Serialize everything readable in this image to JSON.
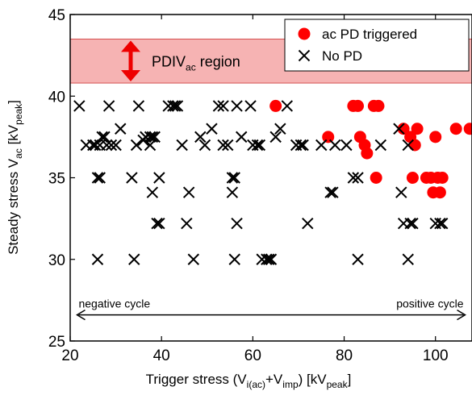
{
  "chart_data": {
    "type": "scatter",
    "xlabel": {
      "main": "Trigger stress (V",
      "sub1": "i(ac)",
      "mid": "+V",
      "sub2": "imp",
      "unitpre": ") [kV",
      "unitsub": "peak",
      "unitpost": "]"
    },
    "ylabel": {
      "main": "Steady stress V",
      "sub1": "ac",
      "unitpre": " [kV",
      "unitsub": "peak",
      "unitpost": "]"
    },
    "xlim": [
      20,
      108
    ],
    "ylim": [
      25,
      45
    ],
    "xticks": [
      20,
      40,
      60,
      80,
      100
    ],
    "yticks": [
      25,
      30,
      35,
      40,
      45
    ],
    "grid": false,
    "legend_position": "top-right",
    "region": {
      "y0": 40.8,
      "y1": 43.5,
      "color": "#f6b3b3",
      "label_main": "PDIV",
      "label_sub": "ac",
      "label_post": " region"
    },
    "cycle_arrow": {
      "y": 26.6,
      "negative_label": "negative cycle",
      "positive_label": "positive cycle"
    },
    "series": [
      {
        "name": "ac PD triggered",
        "marker": "circle",
        "color": "#ff0000",
        "points": [
          [
            65,
            39.4
          ],
          [
            76.5,
            37.5
          ],
          [
            82,
            39.4
          ],
          [
            83,
            39.4
          ],
          [
            83.5,
            37.5
          ],
          [
            84.5,
            37
          ],
          [
            85,
            36.5
          ],
          [
            86.5,
            39.4
          ],
          [
            87.5,
            39.4
          ],
          [
            87,
            35
          ],
          [
            93,
            38
          ],
          [
            94.5,
            37.5
          ],
          [
            95,
            35
          ],
          [
            95.5,
            37
          ],
          [
            96,
            38
          ],
          [
            98,
            35
          ],
          [
            99,
            35
          ],
          [
            99.5,
            34.1
          ],
          [
            100,
            37.5
          ],
          [
            100.5,
            35
          ],
          [
            101,
            34.1
          ],
          [
            101.5,
            35
          ],
          [
            104.5,
            38
          ],
          [
            107.5,
            38
          ]
        ]
      },
      {
        "name": "No PD",
        "marker": "x",
        "color": "#000000",
        "points": [
          [
            22,
            39.4
          ],
          [
            23.5,
            37
          ],
          [
            25,
            37
          ],
          [
            25.5,
            37
          ],
          [
            26.5,
            37
          ],
          [
            26,
            35
          ],
          [
            26.5,
            35
          ],
          [
            26,
            30
          ],
          [
            27,
            37.5
          ],
          [
            27.5,
            37.5
          ],
          [
            28,
            37
          ],
          [
            28.5,
            39.4
          ],
          [
            29,
            37
          ],
          [
            30,
            37
          ],
          [
            31,
            38
          ],
          [
            33.5,
            35
          ],
          [
            34,
            30
          ],
          [
            34.5,
            37
          ],
          [
            35,
            39.4
          ],
          [
            36,
            37.3
          ],
          [
            36.5,
            37.5
          ],
          [
            37.5,
            37.5
          ],
          [
            37.5,
            37
          ],
          [
            38,
            37.5
          ],
          [
            38,
            34.1
          ],
          [
            38.5,
            37.5
          ],
          [
            39,
            32.2
          ],
          [
            39.5,
            32.2
          ],
          [
            39.5,
            35
          ],
          [
            41.5,
            39.4
          ],
          [
            42.5,
            39.4
          ],
          [
            43,
            39.4
          ],
          [
            43.5,
            39.4
          ],
          [
            44.5,
            37
          ],
          [
            45.5,
            32.2
          ],
          [
            46,
            34.1
          ],
          [
            47,
            30
          ],
          [
            48.5,
            37.5
          ],
          [
            49.5,
            37
          ],
          [
            51,
            38
          ],
          [
            52.5,
            39.4
          ],
          [
            53.5,
            39.4
          ],
          [
            53.5,
            37
          ],
          [
            54.5,
            37
          ],
          [
            55.5,
            35
          ],
          [
            56,
            35
          ],
          [
            55.5,
            34.1
          ],
          [
            56,
            30
          ],
          [
            56.5,
            39.4
          ],
          [
            56.5,
            32.2
          ],
          [
            57.5,
            37.5
          ],
          [
            59.5,
            39.4
          ],
          [
            60,
            37
          ],
          [
            61,
            37
          ],
          [
            61.5,
            37
          ],
          [
            62,
            30
          ],
          [
            63,
            30
          ],
          [
            63.5,
            30
          ],
          [
            64,
            30
          ],
          [
            65,
            37.5
          ],
          [
            66,
            38
          ],
          [
            67.5,
            39.4
          ],
          [
            69.5,
            37
          ],
          [
            70.5,
            37
          ],
          [
            71,
            37
          ],
          [
            72,
            32.2
          ],
          [
            75,
            37
          ],
          [
            77,
            34.1
          ],
          [
            77.5,
            34.1
          ],
          [
            78,
            37
          ],
          [
            80.5,
            37
          ],
          [
            82,
            35
          ],
          [
            83,
            35
          ],
          [
            83,
            30
          ],
          [
            88,
            37
          ],
          [
            92,
            38
          ],
          [
            92.5,
            34.1
          ],
          [
            93,
            32.2
          ],
          [
            94,
            37
          ],
          [
            94.5,
            32.2
          ],
          [
            94,
            30
          ],
          [
            95,
            32.2
          ],
          [
            100,
            32.2
          ],
          [
            101,
            32.2
          ],
          [
            101.5,
            32.2
          ]
        ]
      }
    ]
  }
}
